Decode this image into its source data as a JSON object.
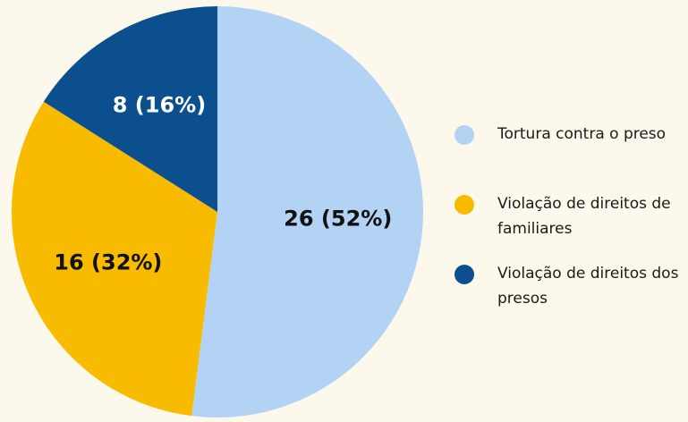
{
  "chart_data": {
    "type": "pie",
    "categories": [
      "Tortura contra o preso",
      "Violação de direitos de familiares",
      "Violação de direitos dos presos"
    ],
    "values": [
      26,
      16,
      8
    ],
    "value_labels": [
      "26 (52%)",
      "16 (32%)",
      "8 (16%)"
    ],
    "colors": [
      "#b3d3f5",
      "#f9bb00",
      "#0b4f8f"
    ],
    "legend": "right"
  }
}
